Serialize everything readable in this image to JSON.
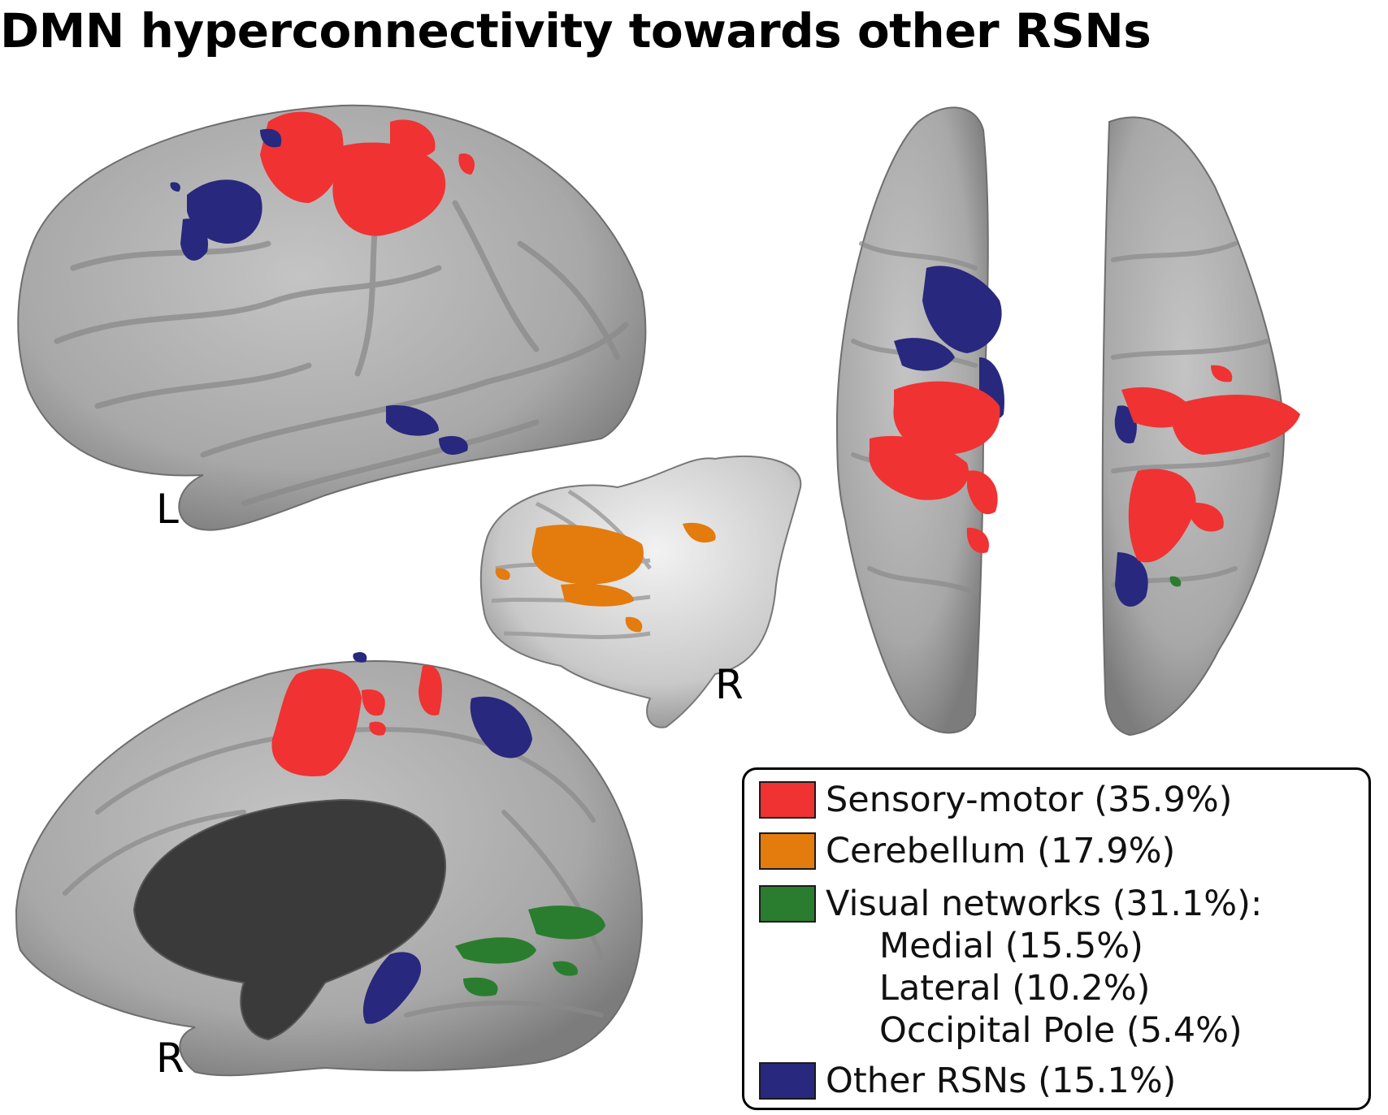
{
  "title": "DMN hyperconnectivity towards other RSNs",
  "views": {
    "left_lateral_label": "L",
    "right_medial_label": "R",
    "cerebellum_label": "R"
  },
  "legend": {
    "items": [
      {
        "label": "Sensory-motor (35.9%)",
        "color": "#f03232"
      },
      {
        "label": "Cerebellum (17.9%)",
        "color": "#e37b0d"
      },
      {
        "label": "Visual networks (31.1%):",
        "color": "#2a7d2e"
      },
      {
        "label": "Other RSNs (15.1%)",
        "color": "#28287e"
      }
    ],
    "visual_subitems": [
      "Medial (15.5%)",
      "Lateral (10.2%)",
      "Occipital Pole (5.4%)"
    ]
  },
  "colors": {
    "brain_surface": "#a9a9a9",
    "medial_wall": "#3a3a3a",
    "sensory_motor": "#f03232",
    "cerebellum": "#e37b0d",
    "visual": "#2a7d2e",
    "other_rsns": "#28287e"
  }
}
